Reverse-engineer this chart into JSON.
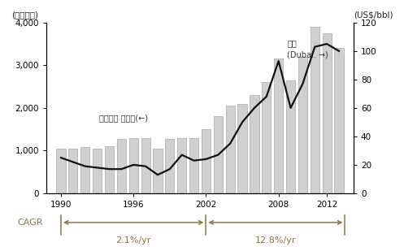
{
  "years": [
    1990,
    1991,
    1992,
    1993,
    1994,
    1995,
    1996,
    1997,
    1998,
    1999,
    2000,
    2001,
    2002,
    2003,
    2004,
    2005,
    2006,
    2007,
    2008,
    2009,
    2010,
    2011,
    2012,
    2013
  ],
  "bar_values": [
    1050,
    1050,
    1080,
    1050,
    1100,
    1280,
    1300,
    1300,
    1050,
    1280,
    1300,
    1300,
    1500,
    1800,
    2050,
    2100,
    2300,
    2600,
    3150,
    2650,
    3200,
    3900,
    3750,
    3400
  ],
  "line_values": [
    25,
    22,
    19,
    18,
    17,
    17,
    20,
    19,
    13,
    17,
    27,
    23,
    24,
    27,
    35,
    50,
    60,
    68,
    93,
    60,
    77,
    103,
    105,
    100
  ],
  "bar_color": "#d0d0d0",
  "bar_edge_color": "#999999",
  "line_color": "#111111",
  "left_ylabel": "(십억달러)",
  "right_ylabel": "(US$/bbl)",
  "left_ylim": [
    0,
    4000
  ],
  "right_ylim": [
    0,
    120
  ],
  "left_yticks": [
    0,
    1000,
    2000,
    3000,
    4000
  ],
  "right_yticks": [
    0,
    20,
    40,
    60,
    80,
    100,
    120
  ],
  "xticks": [
    1990,
    1996,
    2002,
    2008,
    2012
  ],
  "bar_annotation": "화학산업 출하액(←)",
  "line_annotation_line1": "유가",
  "line_annotation_line2": "(Dubai. →)",
  "cagr_label": "CAGR",
  "cagr1_text": "2.1%/yr",
  "cagr2_text": "12.8%/yr",
  "cagr_color": "#8B7545",
  "bg_color": "#ffffff",
  "xlim_left": 1988.8,
  "xlim_right": 2014.2
}
